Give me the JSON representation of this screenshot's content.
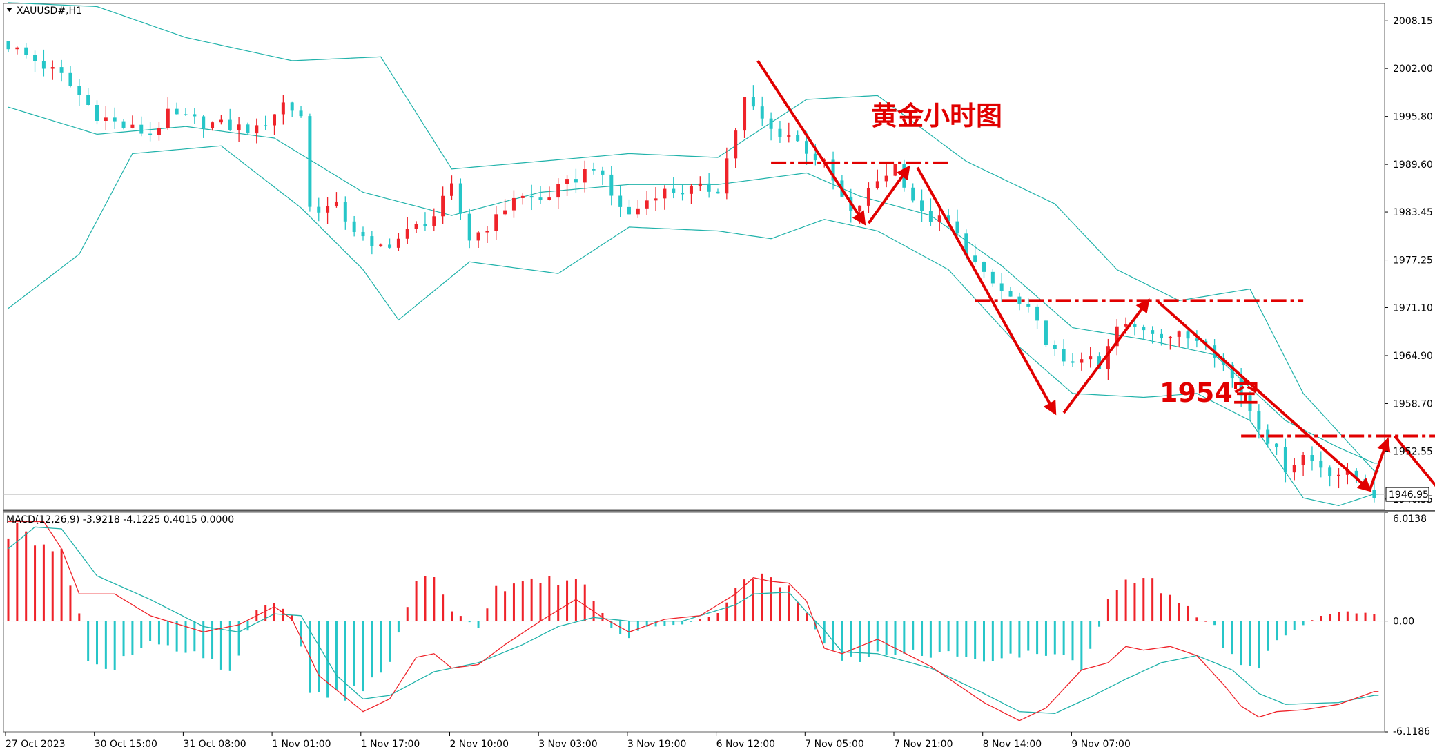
{
  "window": {
    "symbol_title": "XAUUSD#,H1"
  },
  "chart_data": [
    {
      "type": "candlestick",
      "title": "XAUUSD#,H1",
      "annotation_title": "黄金小时图",
      "annotation_target": "1954空",
      "current_price_label": "1946.95",
      "ylim": [
        1945.0,
        2010.4
      ],
      "y_ticks": [
        "2008.15",
        "2002.00",
        "1995.80",
        "1989.60",
        "1983.45",
        "1977.25",
        "1971.10",
        "1964.90",
        "1958.70",
        "1952.55",
        "1946.35"
      ],
      "x_ticks": [
        "27 Oct 2023",
        "30 Oct 15:00",
        "31 Oct 08:00",
        "1 Nov 01:00",
        "1 Nov 17:00",
        "2 Nov 10:00",
        "3 Nov 03:00",
        "3 Nov 19:00",
        "6 Nov 12:00",
        "7 Nov 05:00",
        "7 Nov 21:00",
        "8 Nov 14:00",
        "9 Nov 07:00"
      ],
      "bar_count": 155,
      "close_anchors": [
        [
          0,
          2005.0
        ],
        [
          6,
          2001.0
        ],
        [
          10,
          1996.0
        ],
        [
          13,
          1994.5
        ],
        [
          16,
          1993.5
        ],
        [
          18,
          1996.0
        ],
        [
          22,
          1995.0
        ],
        [
          28,
          1994.0
        ],
        [
          31,
          1997.5
        ],
        [
          33,
          1996.0
        ],
        [
          34,
          1984.0
        ],
        [
          37,
          1984.0
        ],
        [
          41,
          1978.5
        ],
        [
          44,
          1980.0
        ],
        [
          48,
          1983.0
        ],
        [
          50,
          1986.5
        ],
        [
          52,
          1980.0
        ],
        [
          55,
          1982.5
        ],
        [
          57,
          1985.5
        ],
        [
          60,
          1985.0
        ],
        [
          63,
          1987.0
        ],
        [
          66,
          1989.5
        ],
        [
          68,
          1985.5
        ],
        [
          70,
          1983.0
        ],
        [
          73,
          1986.0
        ],
        [
          80,
          1986.5
        ],
        [
          83,
          1998.0
        ],
        [
          86,
          1994.0
        ],
        [
          88,
          1993.5
        ],
        [
          92,
          1989.5
        ],
        [
          95,
          1983.0
        ],
        [
          98,
          1987.5
        ],
        [
          100,
          1989.5
        ],
        [
          103,
          1983.0
        ],
        [
          106,
          1982.0
        ],
        [
          110,
          1975.0
        ],
        [
          115,
          1970.5
        ],
        [
          119,
          1963.5
        ],
        [
          121,
          1965.0
        ],
        [
          123,
          1963.0
        ],
        [
          125,
          1968.5
        ],
        [
          128,
          1968.5
        ],
        [
          131,
          1967.5
        ],
        [
          135,
          1967.0
        ],
        [
          138,
          1962.0
        ],
        [
          141,
          1956.0
        ],
        [
          144,
          1950.5
        ],
        [
          146,
          1952.0
        ],
        [
          149,
          1950.0
        ],
        [
          152,
          1949.0
        ],
        [
          154,
          1947.0
        ]
      ],
      "bollinger_upper": [
        [
          0,
          2010.5
        ],
        [
          10,
          2010.0
        ],
        [
          20,
          2006.0
        ],
        [
          32,
          2003.0
        ],
        [
          42,
          2003.5
        ],
        [
          50,
          1989.0
        ],
        [
          60,
          1990.0
        ],
        [
          70,
          1991.0
        ],
        [
          80,
          1990.5
        ],
        [
          90,
          1998.0
        ],
        [
          98,
          1998.5
        ],
        [
          108,
          1990.0
        ],
        [
          118,
          1984.5
        ],
        [
          125,
          1976.0
        ],
        [
          132,
          1972.0
        ],
        [
          140,
          1973.5
        ],
        [
          146,
          1960.0
        ],
        [
          154,
          1950.0
        ]
      ],
      "bollinger_middle": [
        [
          0,
          1997.0
        ],
        [
          10,
          1993.5
        ],
        [
          20,
          1994.5
        ],
        [
          30,
          1993.0
        ],
        [
          40,
          1986.0
        ],
        [
          50,
          1983.0
        ],
        [
          60,
          1986.0
        ],
        [
          70,
          1987.0
        ],
        [
          80,
          1987.0
        ],
        [
          90,
          1988.5
        ],
        [
          96,
          1985.5
        ],
        [
          104,
          1983.0
        ],
        [
          112,
          1976.5
        ],
        [
          120,
          1968.5
        ],
        [
          128,
          1967.0
        ],
        [
          136,
          1965.0
        ],
        [
          144,
          1956.5
        ],
        [
          150,
          1953.0
        ],
        [
          154,
          1951.0
        ]
      ],
      "bollinger_lower": [
        [
          0,
          1971.0
        ],
        [
          8,
          1978.0
        ],
        [
          14,
          1991.0
        ],
        [
          24,
          1992.0
        ],
        [
          33,
          1984.0
        ],
        [
          40,
          1976.0
        ],
        [
          44,
          1969.5
        ],
        [
          52,
          1977.0
        ],
        [
          62,
          1975.5
        ],
        [
          70,
          1981.5
        ],
        [
          80,
          1981.0
        ],
        [
          86,
          1980.0
        ],
        [
          92,
          1982.5
        ],
        [
          98,
          1981.0
        ],
        [
          106,
          1976.0
        ],
        [
          114,
          1966.0
        ],
        [
          120,
          1960.0
        ],
        [
          128,
          1959.5
        ],
        [
          134,
          1960.0
        ],
        [
          140,
          1956.5
        ],
        [
          146,
          1946.5
        ],
        [
          150,
          1945.5
        ],
        [
          154,
          1947.0
        ]
      ],
      "drawings": {
        "resistance_levels": [
          {
            "x_range": [
              86,
              106
            ],
            "y": 1989.8
          },
          {
            "x_range": [
              109,
              146
            ],
            "y": 1972.0
          },
          {
            "x_range": [
              139,
              169
            ],
            "y": 1954.5
          }
        ],
        "arrows": [
          {
            "from": [
              84.5,
              2003.0
            ],
            "to": [
              96.5,
              1982.0
            ]
          },
          {
            "from": [
              97,
              1982.0
            ],
            "to": [
              101.5,
              1989.2
            ]
          },
          {
            "from": [
              102.5,
              1989.2
            ],
            "to": [
              118,
              1957.5
            ]
          },
          {
            "from": [
              119,
              1957.5
            ],
            "to": [
              128.5,
              1972.0
            ]
          },
          {
            "from": [
              129.5,
              1972.0
            ],
            "to": [
              153.5,
              1947.5
            ]
          },
          {
            "from": [
              153.5,
              1947.5
            ],
            "to": [
              155.5,
              1954.0
            ]
          },
          {
            "from": [
              156.3,
              1954.5
            ],
            "to": [
              165.5,
              1941.8
            ]
          }
        ]
      }
    },
    {
      "type": "macd",
      "title": "MACD(12,26,9) -3.9218 -4.1225 0.4015 0.0000",
      "params": "12,26,9",
      "values": {
        "macd": -3.9218,
        "signal": -4.1225,
        "histogram": 0.4015,
        "zero": 0.0
      },
      "ylim": [
        -6.1186,
        6.0138
      ],
      "y_ticks": [
        "6.0138",
        "0.00",
        "-6.1186"
      ],
      "histogram_anchors": [
        [
          0,
          5.0
        ],
        [
          4,
          4.8
        ],
        [
          6,
          3.5
        ],
        [
          8,
          0.5
        ],
        [
          9,
          -2.2
        ],
        [
          12,
          -2.6
        ],
        [
          16,
          -1.2
        ],
        [
          22,
          -1.8
        ],
        [
          25,
          -2.8
        ],
        [
          28,
          0.6
        ],
        [
          30,
          1.1
        ],
        [
          32,
          0.3
        ],
        [
          34,
          -3.6
        ],
        [
          38,
          -4.3
        ],
        [
          43,
          -2.4
        ],
        [
          44,
          -0.7
        ],
        [
          46,
          2.1
        ],
        [
          48,
          2.6
        ],
        [
          50,
          0.6
        ],
        [
          53,
          -0.4
        ],
        [
          55,
          1.9
        ],
        [
          58,
          2.0
        ],
        [
          62,
          2.3
        ],
        [
          65,
          2.0
        ],
        [
          68,
          -0.4
        ],
        [
          70,
          -0.9
        ],
        [
          72,
          -0.3
        ],
        [
          76,
          -0.2
        ],
        [
          80,
          0.4
        ],
        [
          82,
          2.0
        ],
        [
          84,
          2.6
        ],
        [
          86,
          2.2
        ],
        [
          88,
          1.8
        ],
        [
          90,
          0.4
        ],
        [
          92,
          -1.3
        ],
        [
          94,
          -2.4
        ],
        [
          97,
          -2.0
        ],
        [
          100,
          -1.7
        ],
        [
          103,
          -1.8
        ],
        [
          106,
          -1.9
        ],
        [
          110,
          -2.0
        ],
        [
          114,
          -1.8
        ],
        [
          118,
          -1.9
        ],
        [
          121,
          -2.4
        ],
        [
          123,
          -0.3
        ],
        [
          124,
          1.4
        ],
        [
          126,
          2.4
        ],
        [
          128,
          2.5
        ],
        [
          131,
          1.4
        ],
        [
          133,
          0.8
        ],
        [
          134,
          0.2
        ],
        [
          136,
          -0.2
        ],
        [
          137,
          -1.4
        ],
        [
          139,
          -2.3
        ],
        [
          141,
          -2.7
        ],
        [
          143,
          -1.1
        ],
        [
          146,
          -0.2
        ],
        [
          148,
          0.3
        ],
        [
          150,
          0.5
        ],
        [
          154,
          0.4
        ]
      ],
      "macd_line": [
        [
          0,
          5.5
        ],
        [
          4,
          5.5
        ],
        [
          6,
          4.0
        ],
        [
          8,
          1.5
        ],
        [
          12,
          1.5
        ],
        [
          16,
          0.3
        ],
        [
          22,
          -0.6
        ],
        [
          26,
          -0.2
        ],
        [
          30,
          0.8
        ],
        [
          32,
          0.1
        ],
        [
          35,
          -3.0
        ],
        [
          40,
          -5.0
        ],
        [
          43,
          -4.3
        ],
        [
          46,
          -2.0
        ],
        [
          48,
          -1.8
        ],
        [
          50,
          -2.6
        ],
        [
          53,
          -2.4
        ],
        [
          56,
          -1.3
        ],
        [
          60,
          0.0
        ],
        [
          64,
          1.2
        ],
        [
          67,
          0.2
        ],
        [
          70,
          -0.6
        ],
        [
          74,
          0.1
        ],
        [
          78,
          0.3
        ],
        [
          82,
          1.5
        ],
        [
          84,
          2.4
        ],
        [
          86,
          2.2
        ],
        [
          88,
          2.1
        ],
        [
          90,
          1.1
        ],
        [
          92,
          -1.5
        ],
        [
          94,
          -1.8
        ],
        [
          98,
          -1.0
        ],
        [
          104,
          -2.5
        ],
        [
          110,
          -4.5
        ],
        [
          114,
          -5.5
        ],
        [
          117,
          -4.8
        ],
        [
          121,
          -2.7
        ],
        [
          124,
          -2.3
        ],
        [
          126,
          -1.4
        ],
        [
          128,
          -1.6
        ],
        [
          131,
          -1.4
        ],
        [
          134,
          -1.9
        ],
        [
          137,
          -3.5
        ],
        [
          139,
          -4.7
        ],
        [
          141,
          -5.3
        ],
        [
          143,
          -5.0
        ],
        [
          146,
          -4.9
        ],
        [
          150,
          -4.6
        ],
        [
          154,
          -3.9
        ]
      ],
      "signal_line": [
        [
          0,
          4.0
        ],
        [
          3,
          5.2
        ],
        [
          6,
          5.1
        ],
        [
          10,
          2.5
        ],
        [
          16,
          1.2
        ],
        [
          22,
          -0.3
        ],
        [
          26,
          -0.6
        ],
        [
          30,
          0.4
        ],
        [
          33,
          0.3
        ],
        [
          37,
          -3.0
        ],
        [
          40,
          -4.3
        ],
        [
          43,
          -4.1
        ],
        [
          48,
          -2.8
        ],
        [
          53,
          -2.3
        ],
        [
          58,
          -1.3
        ],
        [
          62,
          -0.3
        ],
        [
          66,
          0.2
        ],
        [
          70,
          0.0
        ],
        [
          76,
          0.0
        ],
        [
          82,
          0.9
        ],
        [
          84,
          1.5
        ],
        [
          88,
          1.6
        ],
        [
          90,
          0.5
        ],
        [
          92,
          -0.5
        ],
        [
          94,
          -1.7
        ],
        [
          98,
          -1.8
        ],
        [
          104,
          -2.6
        ],
        [
          110,
          -4.0
        ],
        [
          114,
          -5.0
        ],
        [
          118,
          -5.1
        ],
        [
          122,
          -4.2
        ],
        [
          126,
          -3.2
        ],
        [
          130,
          -2.3
        ],
        [
          134,
          -1.9
        ],
        [
          138,
          -2.7
        ],
        [
          141,
          -4.0
        ],
        [
          144,
          -4.6
        ],
        [
          150,
          -4.5
        ],
        [
          154,
          -4.1
        ]
      ]
    }
  ],
  "colors": {
    "bull": "#ef232a",
    "bear": "#26c6c8",
    "bollinger": "#20b2aa",
    "macd_line": "#ef232a",
    "signal_line": "#20b2aa",
    "drawing": "#e10000",
    "axis_text": "#000000",
    "frame": "#6e6e6e"
  }
}
